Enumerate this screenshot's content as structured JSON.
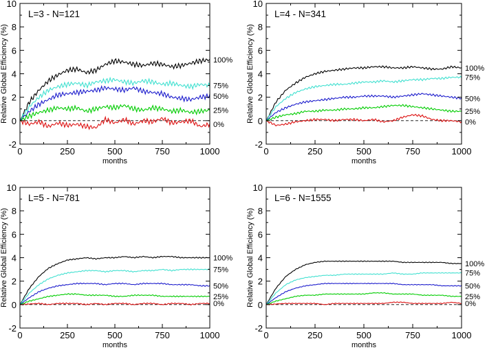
{
  "figure": {
    "ylabel": "Relative Global Efficiency (%)",
    "xlabel": "months"
  },
  "chart_data": [
    {
      "type": "line",
      "title": "L=3 - N=121",
      "xlabel": "months",
      "ylabel": "Relative Global Efficiency (%)",
      "xlim": [
        0,
        1000
      ],
      "ylim": [
        -2,
        10
      ],
      "xticks": [
        0,
        250,
        500,
        750,
        1000
      ],
      "yticks": [
        -2,
        0,
        2,
        4,
        6,
        8,
        10
      ],
      "reference_line": {
        "y": 0,
        "style": "dashed"
      },
      "x": [
        0,
        50,
        100,
        150,
        200,
        250,
        300,
        350,
        400,
        450,
        500,
        550,
        600,
        650,
        700,
        750,
        800,
        850,
        900,
        950,
        1000
      ],
      "series": [
        {
          "name": "100%",
          "color": "#000000",
          "values": [
            0,
            1.6,
            2.6,
            3.4,
            3.9,
            4.3,
            4.4,
            4.1,
            4.3,
            4.8,
            5.1,
            5.0,
            4.8,
            4.7,
            4.9,
            4.8,
            4.6,
            4.7,
            4.9,
            5.1,
            5.2
          ]
        },
        {
          "name": "75%",
          "color": "#40e0d0",
          "values": [
            0,
            1.2,
            2.0,
            2.6,
            2.9,
            3.1,
            3.2,
            3.0,
            3.3,
            3.4,
            3.5,
            3.3,
            3.2,
            3.4,
            3.3,
            3.1,
            3.2,
            3.0,
            2.9,
            3.1,
            3.0
          ]
        },
        {
          "name": "50%",
          "color": "#1a1acc",
          "values": [
            0,
            0.8,
            1.4,
            1.8,
            2.2,
            2.3,
            2.4,
            2.5,
            2.6,
            2.8,
            2.7,
            2.6,
            2.8,
            2.5,
            2.4,
            2.3,
            2.0,
            1.9,
            1.8,
            2.0,
            2.1
          ]
        },
        {
          "name": "25%",
          "color": "#00cc00",
          "values": [
            0,
            0.4,
            0.7,
            0.9,
            1.1,
            1.0,
            1.1,
            0.8,
            1.0,
            1.2,
            1.1,
            1.3,
            1.0,
            0.9,
            1.1,
            1.0,
            0.8,
            0.9,
            0.7,
            0.8,
            0.9
          ]
        },
        {
          "name": "0%",
          "color": "#dd1111",
          "values": [
            0,
            -0.3,
            -0.1,
            -0.5,
            -0.2,
            -0.4,
            -0.3,
            -0.5,
            -0.6,
            0.1,
            -0.2,
            0.1,
            -0.3,
            0.0,
            -0.1,
            0.2,
            -0.2,
            -0.1,
            0.0,
            -0.5,
            -0.3
          ]
        }
      ]
    },
    {
      "type": "line",
      "title": "L=4 - N=341",
      "xlabel": "months",
      "ylabel": "Relative Global Efficiency (%)",
      "xlim": [
        0,
        1000
      ],
      "ylim": [
        -2,
        10
      ],
      "xticks": [
        0,
        250,
        500,
        750,
        1000
      ],
      "yticks": [
        -2,
        0,
        2,
        4,
        6,
        8,
        10
      ],
      "reference_line": {
        "y": 0,
        "style": "dashed"
      },
      "x": [
        0,
        50,
        100,
        150,
        200,
        250,
        300,
        350,
        400,
        450,
        500,
        550,
        600,
        650,
        700,
        750,
        800,
        850,
        900,
        950,
        1000
      ],
      "series": [
        {
          "name": "100%",
          "color": "#000000",
          "values": [
            0,
            1.6,
            2.6,
            3.2,
            3.7,
            4.0,
            4.2,
            4.3,
            4.4,
            4.5,
            4.5,
            4.6,
            4.6,
            4.5,
            4.5,
            4.6,
            4.5,
            4.4,
            4.4,
            4.6,
            4.5
          ]
        },
        {
          "name": "75%",
          "color": "#40e0d0",
          "values": [
            0,
            1.2,
            1.9,
            2.4,
            2.7,
            2.9,
            3.0,
            3.1,
            3.1,
            3.2,
            3.3,
            3.3,
            3.4,
            3.3,
            3.4,
            3.5,
            3.5,
            3.6,
            3.6,
            3.7,
            3.7
          ]
        },
        {
          "name": "50%",
          "color": "#1a1acc",
          "values": [
            0,
            0.7,
            1.1,
            1.4,
            1.6,
            1.7,
            1.8,
            1.9,
            2.0,
            2.0,
            2.1,
            2.1,
            2.1,
            2.0,
            2.1,
            2.2,
            2.3,
            2.2,
            2.1,
            2.0,
            1.9
          ]
        },
        {
          "name": "25%",
          "color": "#00cc00",
          "values": [
            0,
            0.3,
            0.5,
            0.6,
            0.8,
            0.8,
            0.9,
            0.9,
            1.0,
            1.0,
            1.1,
            1.1,
            1.2,
            1.3,
            1.3,
            1.2,
            1.1,
            1.0,
            0.9,
            0.8,
            0.8
          ]
        },
        {
          "name": "0%",
          "color": "#dd1111",
          "values": [
            0,
            -0.4,
            -0.3,
            -0.1,
            0.0,
            0.1,
            0.1,
            0.0,
            0.1,
            0.1,
            0.0,
            0.1,
            -0.1,
            0.0,
            0.3,
            0.5,
            0.4,
            0.1,
            0.0,
            0.0,
            -0.1
          ]
        }
      ]
    },
    {
      "type": "line",
      "title": "L=5 - N=781",
      "xlabel": "months",
      "ylabel": "Relative Global Efficiency (%)",
      "xlim": [
        0,
        1000
      ],
      "ylim": [
        -2,
        10
      ],
      "xticks": [
        0,
        250,
        500,
        750,
        1000
      ],
      "yticks": [
        -2,
        0,
        2,
        4,
        6,
        8,
        10
      ],
      "reference_line": {
        "y": 0,
        "style": "dashed"
      },
      "x": [
        0,
        50,
        100,
        150,
        200,
        250,
        300,
        350,
        400,
        450,
        500,
        550,
        600,
        650,
        700,
        750,
        800,
        850,
        900,
        950,
        1000
      ],
      "series": [
        {
          "name": "100%",
          "color": "#000000",
          "values": [
            0,
            1.4,
            2.4,
            3.1,
            3.5,
            3.8,
            3.9,
            4.0,
            3.9,
            4.0,
            4.0,
            4.1,
            4.0,
            4.1,
            4.0,
            4.1,
            4.1,
            4.0,
            4.0,
            4.0,
            4.0
          ]
        },
        {
          "name": "75%",
          "color": "#40e0d0",
          "values": [
            0,
            1.0,
            1.7,
            2.2,
            2.5,
            2.7,
            2.8,
            2.9,
            2.9,
            2.8,
            2.9,
            2.9,
            2.8,
            2.9,
            2.9,
            3.0,
            2.9,
            3.0,
            3.0,
            3.0,
            3.0
          ]
        },
        {
          "name": "50%",
          "color": "#1a1acc",
          "values": [
            0,
            0.6,
            1.1,
            1.4,
            1.6,
            1.7,
            1.8,
            1.8,
            1.8,
            1.7,
            1.8,
            1.8,
            1.7,
            1.8,
            1.8,
            1.8,
            1.7,
            1.7,
            1.7,
            1.6,
            1.6
          ]
        },
        {
          "name": "25%",
          "color": "#00cc00",
          "values": [
            0,
            0.3,
            0.5,
            0.7,
            0.8,
            0.9,
            0.9,
            0.8,
            0.8,
            0.8,
            0.7,
            0.7,
            0.8,
            0.8,
            0.8,
            0.7,
            0.7,
            0.7,
            0.7,
            0.7,
            0.7
          ]
        },
        {
          "name": "0%",
          "color": "#dd1111",
          "values": [
            0,
            0.05,
            0.1,
            0.0,
            0.1,
            0.1,
            0.1,
            0.0,
            0.1,
            0.0,
            0.1,
            0.1,
            0.0,
            0.1,
            0.1,
            0.0,
            0.1,
            0.1,
            0.0,
            0.1,
            0.1
          ]
        }
      ]
    },
    {
      "type": "line",
      "title": "L=6 - N=1555",
      "xlabel": "months",
      "ylabel": "Relative Global Efficiency (%)",
      "xlim": [
        0,
        1000
      ],
      "ylim": [
        -2,
        10
      ],
      "xticks": [
        0,
        250,
        500,
        750,
        1000
      ],
      "yticks": [
        -2,
        0,
        2,
        4,
        6,
        8,
        10
      ],
      "reference_line": {
        "y": 0,
        "style": "dashed"
      },
      "x": [
        0,
        50,
        100,
        150,
        200,
        250,
        300,
        350,
        400,
        450,
        500,
        550,
        600,
        650,
        700,
        750,
        800,
        850,
        900,
        950,
        1000
      ],
      "series": [
        {
          "name": "100%",
          "color": "#000000",
          "values": [
            0,
            1.4,
            2.4,
            3.0,
            3.4,
            3.6,
            3.7,
            3.7,
            3.7,
            3.7,
            3.7,
            3.7,
            3.7,
            3.7,
            3.6,
            3.6,
            3.6,
            3.6,
            3.6,
            3.5,
            3.5
          ]
        },
        {
          "name": "75%",
          "color": "#40e0d0",
          "values": [
            0,
            1.0,
            1.7,
            2.1,
            2.3,
            2.4,
            2.5,
            2.5,
            2.6,
            2.6,
            2.6,
            2.6,
            2.6,
            2.7,
            2.6,
            2.6,
            2.7,
            2.7,
            2.7,
            2.7,
            2.7
          ]
        },
        {
          "name": "50%",
          "color": "#1a1acc",
          "values": [
            0,
            0.6,
            1.1,
            1.4,
            1.6,
            1.7,
            1.8,
            1.8,
            1.8,
            1.8,
            1.8,
            1.8,
            1.8,
            1.8,
            1.7,
            1.7,
            1.7,
            1.7,
            1.6,
            1.6,
            1.6
          ]
        },
        {
          "name": "25%",
          "color": "#00cc00",
          "values": [
            0,
            0.3,
            0.5,
            0.7,
            0.8,
            0.8,
            0.9,
            0.9,
            0.9,
            0.9,
            0.9,
            1.0,
            1.0,
            0.9,
            0.9,
            0.9,
            0.8,
            0.8,
            0.8,
            0.7,
            0.7
          ]
        },
        {
          "name": "0%",
          "color": "#dd1111",
          "values": [
            0,
            0.05,
            0.1,
            0.1,
            0.1,
            0.1,
            0.0,
            0.1,
            0.1,
            0.1,
            0.1,
            0.1,
            0.1,
            0.2,
            0.2,
            0.1,
            0.1,
            0.1,
            0.1,
            0.2,
            0.1
          ]
        }
      ]
    }
  ]
}
